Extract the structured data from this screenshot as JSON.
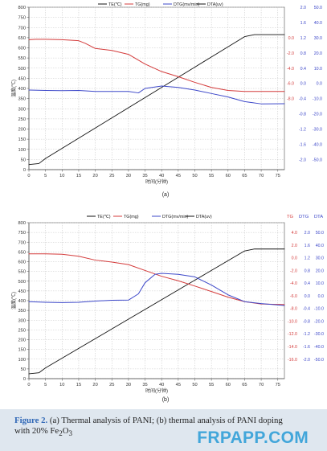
{
  "page": {
    "colors": {
      "background": "#ffffff",
      "grid": "#c6c6c6",
      "caption_background": "#dfe7ef",
      "caption_label": "#2f67b6",
      "watermark": "#42a6da"
    }
  },
  "caption": {
    "figure_label": "Figure 2.",
    "text_line1": "(a) Thermal analysis of PANI; (b) thermal analysis of PANI doping",
    "text_line2_prefix": "with 20% Fe",
    "formula_sub_2": "2",
    "formula_O": "O",
    "formula_sub_3": "3",
    "watermark": "FRPAPP.COM"
  },
  "chart_data": [
    {
      "id": "a",
      "type": "line",
      "panel_label": "(a)",
      "title": "",
      "xlabel": "时间(分钟)",
      "ylabel": "温度(℃)",
      "xlim": [
        0,
        77
      ],
      "ylim": [
        0,
        800
      ],
      "grid": true,
      "legend_placement": "top-center",
      "x_ticks": [
        0,
        5,
        10,
        15,
        20,
        25,
        30,
        35,
        40,
        45,
        50,
        55,
        60,
        65,
        70,
        75
      ],
      "y_ticks": [
        0,
        50,
        100,
        150,
        200,
        250,
        300,
        350,
        400,
        450,
        500,
        550,
        600,
        650,
        700,
        750,
        800
      ],
      "legend_entries": [
        {
          "name": "TE(℃)",
          "color": "#111111"
        },
        {
          "name": "TG(mg)",
          "color": "#d43b3b"
        },
        {
          "name": "DTG(mv/min)",
          "color": "#3d48c9"
        },
        {
          "name": "DTA(uv)",
          "color": "#111111"
        }
      ],
      "right_axis_rows": [
        {
          "tg": "",
          "dtg": "2.0",
          "dta": "50.0",
          "y": 800
        },
        {
          "tg": "",
          "dtg": "1.6",
          "dta": "40.0",
          "y": 725
        },
        {
          "tg": "0.0",
          "dtg": "1.2",
          "dta": "30.0",
          "y": 650
        },
        {
          "tg": "-2.0",
          "dtg": "0.8",
          "dta": "20.0",
          "y": 575
        },
        {
          "tg": "-4.0",
          "dtg": "0.4",
          "dta": "10.0",
          "y": 500
        },
        {
          "tg": "-6.0",
          "dtg": "0.0",
          "dta": "0.0",
          "y": 425
        },
        {
          "tg": "-8.0",
          "dtg": "-0.4",
          "dta": "-10.0",
          "y": 350
        },
        {
          "tg": "",
          "dtg": "-0.8",
          "dta": "-20.0",
          "y": 275
        },
        {
          "tg": "",
          "dtg": "-1.2",
          "dta": "-30.0",
          "y": 200
        },
        {
          "tg": "",
          "dtg": "-1.6",
          "dta": "-40.0",
          "y": 125
        },
        {
          "tg": "",
          "dtg": "-2.0",
          "dta": "-50.0",
          "y": 50
        }
      ],
      "series": [
        {
          "name": "TE(℃)",
          "color": "#111111",
          "x": [
            0,
            3,
            5,
            10,
            15,
            20,
            25,
            30,
            35,
            40,
            45,
            50,
            55,
            60,
            65,
            68,
            70,
            77
          ],
          "y": [
            25,
            30,
            55,
            105,
            155,
            205,
            255,
            305,
            355,
            405,
            455,
            505,
            555,
            605,
            655,
            665,
            665,
            665
          ]
        },
        {
          "name": "TG(mg)",
          "color": "#d43b3b",
          "x": [
            0,
            2,
            5,
            10,
            15,
            17,
            20,
            25,
            30,
            35,
            40,
            45,
            50,
            55,
            60,
            65,
            70,
            77
          ],
          "y": [
            640,
            642,
            642,
            640,
            635,
            622,
            597,
            587,
            568,
            520,
            483,
            458,
            430,
            405,
            390,
            385,
            385,
            385
          ]
        },
        {
          "name": "DTG(mv/min)",
          "color": "#3d48c9",
          "x": [
            0,
            5,
            10,
            15,
            20,
            25,
            30,
            33,
            35,
            40,
            45,
            50,
            55,
            60,
            65,
            70,
            77
          ],
          "y": [
            392,
            390,
            389,
            390,
            385,
            385,
            385,
            378,
            400,
            412,
            405,
            392,
            375,
            358,
            335,
            324,
            325
          ]
        }
      ]
    },
    {
      "id": "b",
      "type": "line",
      "panel_label": "(b)",
      "title": "",
      "xlabel": "时间(分钟)",
      "ylabel": "温度(℃)",
      "xlim": [
        0,
        77
      ],
      "ylim": [
        0,
        800
      ],
      "grid": true,
      "legend_placement": "top-center",
      "x_ticks": [
        0,
        5,
        10,
        15,
        20,
        25,
        30,
        35,
        40,
        45,
        50,
        55,
        60,
        65,
        70,
        75
      ],
      "y_ticks": [
        0,
        50,
        100,
        150,
        200,
        250,
        300,
        350,
        400,
        450,
        500,
        550,
        600,
        650,
        700,
        750,
        800
      ],
      "legend_entries": [
        {
          "name": "TE(℃)",
          "color": "#111111"
        },
        {
          "name": "TG(mg)",
          "color": "#d43b3b"
        },
        {
          "name": "DTG(mv/min)",
          "color": "#3d48c9"
        },
        {
          "name": "DTA(uv)",
          "color": "#111111"
        }
      ],
      "right_axis_header": {
        "tg": "TG",
        "dtg": "DTG",
        "dta": "DTA"
      },
      "right_axis_rows": [
        {
          "tg": "4.0",
          "dtg": "2.0",
          "dta": "50.0",
          "y": 750
        },
        {
          "tg": "2.0",
          "dtg": "1.6",
          "dta": "40.0",
          "y": 685
        },
        {
          "tg": "0.0",
          "dtg": "1.2",
          "dta": "30.0",
          "y": 620
        },
        {
          "tg": "-2.0",
          "dtg": "0.8",
          "dta": "20.0",
          "y": 555
        },
        {
          "tg": "-4.0",
          "dtg": "0.4",
          "dta": "10.0",
          "y": 490
        },
        {
          "tg": "-6.0",
          "dtg": "0.0",
          "dta": "0.0",
          "y": 425
        },
        {
          "tg": "-8.0",
          "dtg": "-0.4",
          "dta": "-10.0",
          "y": 360
        },
        {
          "tg": "-10.0",
          "dtg": "-0.8",
          "dta": "-20.0",
          "y": 295
        },
        {
          "tg": "-12.0",
          "dtg": "-1.2",
          "dta": "-30.0",
          "y": 230
        },
        {
          "tg": "-14.0",
          "dtg": "-1.6",
          "dta": "-40.0",
          "y": 165
        },
        {
          "tg": "-16.0",
          "dtg": "-2.0",
          "dta": "-50.0",
          "y": 100
        }
      ],
      "series": [
        {
          "name": "TE(℃)",
          "color": "#111111",
          "x": [
            0,
            3,
            5,
            10,
            15,
            20,
            25,
            30,
            35,
            40,
            45,
            50,
            55,
            60,
            65,
            68,
            70,
            77
          ],
          "y": [
            25,
            30,
            55,
            105,
            155,
            205,
            255,
            305,
            355,
            405,
            455,
            505,
            555,
            605,
            655,
            665,
            665,
            665
          ]
        },
        {
          "name": "TG(mg)",
          "color": "#d43b3b",
          "x": [
            0,
            5,
            10,
            15,
            20,
            25,
            30,
            35,
            40,
            45,
            50,
            55,
            60,
            65,
            70,
            77
          ],
          "y": [
            640,
            640,
            638,
            628,
            608,
            598,
            585,
            555,
            525,
            502,
            475,
            447,
            418,
            395,
            383,
            380
          ]
        },
        {
          "name": "DTG(mv/min)",
          "color": "#3d48c9",
          "x": [
            0,
            5,
            10,
            15,
            20,
            25,
            30,
            33,
            35,
            38,
            40,
            45,
            50,
            55,
            60,
            65,
            70,
            77
          ],
          "y": [
            395,
            392,
            390,
            392,
            398,
            402,
            403,
            435,
            492,
            535,
            540,
            535,
            522,
            480,
            430,
            395,
            385,
            375
          ]
        }
      ]
    }
  ]
}
